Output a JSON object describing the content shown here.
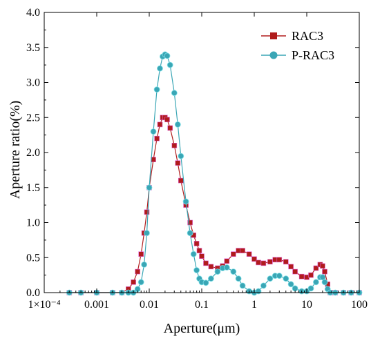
{
  "chart_data": {
    "type": "line",
    "title": "",
    "xlabel": "Aperture(μm)",
    "ylabel": "Aperture ratio(%)",
    "xscale": "log",
    "xlim": [
      0.0001,
      100
    ],
    "ylim": [
      0,
      4.0
    ],
    "x_ticks": [
      {
        "value": 0.0001,
        "label": "1×10⁻⁴"
      },
      {
        "value": 0.001,
        "label": "0.001"
      },
      {
        "value": 0.01,
        "label": "0.01"
      },
      {
        "value": 0.1,
        "label": "0.1"
      },
      {
        "value": 1,
        "label": "1"
      },
      {
        "value": 10,
        "label": "10"
      },
      {
        "value": 100,
        "label": "100"
      }
    ],
    "y_ticks": [
      {
        "value": 0,
        "label": "0.0"
      },
      {
        "value": 0.5,
        "label": "0.5"
      },
      {
        "value": 1.0,
        "label": "1.0"
      },
      {
        "value": 1.5,
        "label": "1.5"
      },
      {
        "value": 2.0,
        "label": "2.0"
      },
      {
        "value": 2.5,
        "label": "2.5"
      },
      {
        "value": 3.0,
        "label": "3.0"
      },
      {
        "value": 3.5,
        "label": "3.5"
      },
      {
        "value": 4.0,
        "label": "4.0"
      }
    ],
    "grid": false,
    "legend_position": "top-right",
    "series": [
      {
        "name": "RAC3",
        "color": "#b01c1c",
        "marker": "square",
        "x": [
          0.0003,
          0.0005,
          0.001,
          0.002,
          0.003,
          0.004,
          0.005,
          0.006,
          0.007,
          0.008,
          0.009,
          0.01,
          0.012,
          0.014,
          0.016,
          0.018,
          0.02,
          0.022,
          0.025,
          0.03,
          0.035,
          0.04,
          0.05,
          0.06,
          0.07,
          0.08,
          0.09,
          0.1,
          0.12,
          0.15,
          0.2,
          0.25,
          0.3,
          0.4,
          0.5,
          0.6,
          0.8,
          1.0,
          1.2,
          1.5,
          2.0,
          2.5,
          3.0,
          4.0,
          5.0,
          6.0,
          8.0,
          10.0,
          12.0,
          15.0,
          18.0,
          20.0,
          22.0,
          25.0,
          28.0,
          35.0,
          50.0,
          70.0,
          100.0
        ],
        "values": [
          0.0,
          0.0,
          0.0,
          0.0,
          0.0,
          0.05,
          0.15,
          0.3,
          0.55,
          0.85,
          1.15,
          1.5,
          1.9,
          2.2,
          2.4,
          2.5,
          2.5,
          2.47,
          2.35,
          2.1,
          1.85,
          1.6,
          1.25,
          1.0,
          0.82,
          0.7,
          0.6,
          0.52,
          0.42,
          0.37,
          0.35,
          0.38,
          0.45,
          0.55,
          0.6,
          0.6,
          0.55,
          0.48,
          0.43,
          0.42,
          0.44,
          0.47,
          0.47,
          0.44,
          0.37,
          0.3,
          0.23,
          0.22,
          0.25,
          0.35,
          0.4,
          0.38,
          0.3,
          0.12,
          0.0,
          0.0,
          0.0,
          0.0,
          0.0
        ]
      },
      {
        "name": "P-RAC3",
        "color": "#3aa6b5",
        "marker": "circle",
        "x": [
          0.0003,
          0.0005,
          0.001,
          0.002,
          0.003,
          0.004,
          0.005,
          0.006,
          0.007,
          0.008,
          0.009,
          0.01,
          0.012,
          0.014,
          0.016,
          0.018,
          0.02,
          0.022,
          0.025,
          0.03,
          0.035,
          0.04,
          0.05,
          0.06,
          0.07,
          0.08,
          0.09,
          0.1,
          0.12,
          0.15,
          0.2,
          0.25,
          0.3,
          0.4,
          0.5,
          0.6,
          0.8,
          1.0,
          1.2,
          1.5,
          2.0,
          2.5,
          3.0,
          4.0,
          5.0,
          6.0,
          8.0,
          10.0,
          12.0,
          15.0,
          18.0,
          20.0,
          22.0,
          25.0,
          28.0,
          35.0,
          50.0,
          70.0,
          100.0
        ],
        "values": [
          0.0,
          0.0,
          0.0,
          0.0,
          0.0,
          0.0,
          0.0,
          0.05,
          0.15,
          0.4,
          0.85,
          1.5,
          2.3,
          2.9,
          3.2,
          3.37,
          3.4,
          3.38,
          3.25,
          2.85,
          2.4,
          1.95,
          1.3,
          0.85,
          0.55,
          0.32,
          0.2,
          0.15,
          0.14,
          0.2,
          0.3,
          0.35,
          0.36,
          0.3,
          0.2,
          0.1,
          0.02,
          0.0,
          0.02,
          0.1,
          0.2,
          0.24,
          0.24,
          0.2,
          0.12,
          0.06,
          0.02,
          0.02,
          0.06,
          0.15,
          0.22,
          0.22,
          0.15,
          0.05,
          0.0,
          0.0,
          0.0,
          0.0,
          0.0
        ]
      }
    ]
  }
}
